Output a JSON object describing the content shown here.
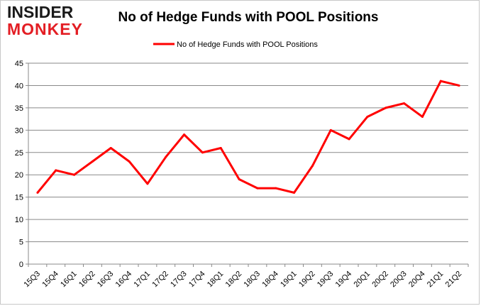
{
  "logo": {
    "line1": "INSIDER",
    "line2": "MONKEY"
  },
  "chart_data": {
    "type": "line",
    "title": "No of Hedge Funds with POOL Positions",
    "xlabel": "",
    "ylabel": "",
    "categories": [
      "15Q3",
      "15Q4",
      "16Q1",
      "16Q2",
      "16Q3",
      "16Q4",
      "17Q1",
      "17Q2",
      "17Q3",
      "17Q4",
      "18Q1",
      "18Q2",
      "18Q3",
      "18Q4",
      "19Q1",
      "19Q2",
      "19Q3",
      "19Q4",
      "20Q1",
      "20Q2",
      "20Q3",
      "20Q4",
      "21Q1",
      "21Q2"
    ],
    "series": [
      {
        "name": "No of Hedge Funds with POOL Positions",
        "color": "#ff0000",
        "values": [
          16,
          21,
          20,
          23,
          26,
          23,
          18,
          24,
          29,
          25,
          26,
          19,
          17,
          17,
          16,
          22,
          30,
          28,
          33,
          35,
          36,
          33,
          41,
          40
        ]
      }
    ],
    "yticks": [
      0,
      5,
      10,
      15,
      20,
      25,
      30,
      35,
      40,
      45
    ],
    "ylim": [
      0,
      45
    ],
    "grid": true,
    "legend": "top-center"
  }
}
